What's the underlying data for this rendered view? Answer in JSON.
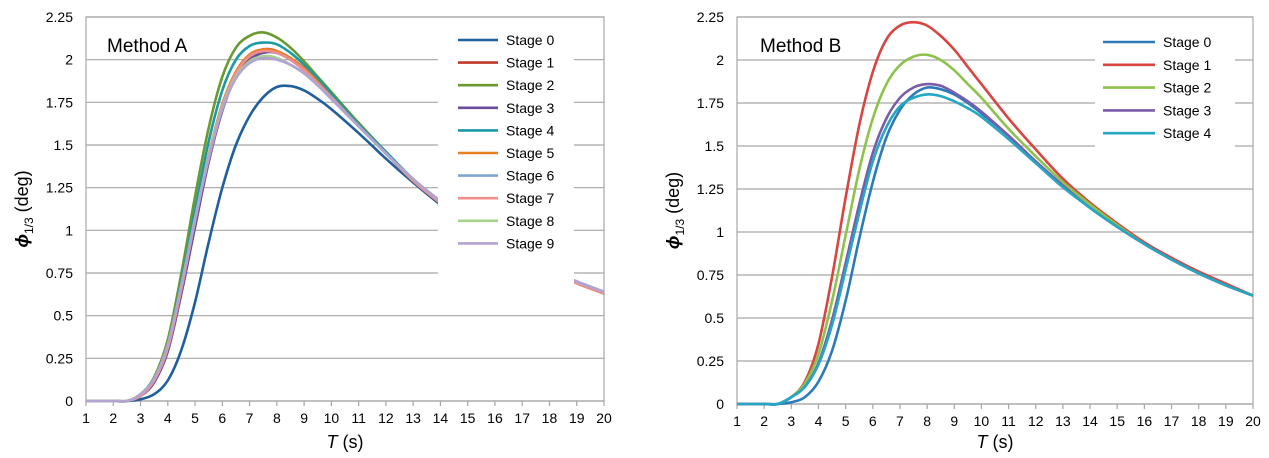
{
  "chart_data": [
    {
      "type": "line",
      "title": "Method A",
      "xlabel_symbol": "T",
      "xlabel_unit": " (s)",
      "ylabel_symbol": "ϕ",
      "ylabel_subscript": "1/3",
      "ylabel_unit": " (deg)",
      "xlim": [
        1,
        20
      ],
      "ylim": [
        0,
        2.25
      ],
      "x_ticks": [
        1,
        2,
        3,
        4,
        5,
        6,
        7,
        8,
        9,
        10,
        11,
        12,
        13,
        14,
        15,
        16,
        17,
        18,
        19,
        20
      ],
      "y_ticks": [
        {
          "value": 0,
          "label": "0"
        },
        {
          "value": 0.25,
          "label": "0.25"
        },
        {
          "value": 0.5,
          "label": "0.5"
        },
        {
          "value": 0.75,
          "label": "0.75"
        },
        {
          "value": 1,
          "label": "1"
        },
        {
          "value": 1.25,
          "label": "1.25"
        },
        {
          "value": 1.5,
          "label": "1.5"
        },
        {
          "value": 1.75,
          "label": "1.75"
        },
        {
          "value": 2,
          "label": "2"
        },
        {
          "value": 2.25,
          "label": "2.25"
        }
      ],
      "grid": "horizontal",
      "legend_position": "right",
      "series": [
        {
          "name": "Stage 0",
          "color": "#1f5f9e",
          "x": [
            1,
            2,
            2.5,
            3,
            3.5,
            4,
            4.5,
            5,
            5.5,
            6,
            6.5,
            7,
            7.5,
            8,
            8.5,
            9,
            9.5,
            10,
            11,
            12,
            13,
            14,
            15,
            16,
            17,
            18,
            19,
            20
          ],
          "y": [
            0,
            0,
            0,
            0.01,
            0.04,
            0.12,
            0.3,
            0.58,
            0.93,
            1.25,
            1.5,
            1.67,
            1.78,
            1.84,
            1.845,
            1.82,
            1.77,
            1.71,
            1.57,
            1.42,
            1.28,
            1.15,
            1.03,
            0.93,
            0.84,
            0.76,
            0.69,
            0.63
          ]
        },
        {
          "name": "Stage 1",
          "color": "#c0392b",
          "x": [
            1,
            2,
            2.5,
            3,
            3.5,
            4,
            4.5,
            5,
            5.5,
            6,
            6.5,
            7,
            7.5,
            8,
            8.5,
            9,
            9.5,
            10,
            11,
            12,
            13,
            14,
            15,
            16,
            17,
            18,
            19,
            20
          ],
          "y": [
            0,
            0,
            0,
            0.03,
            0.11,
            0.3,
            0.65,
            1.05,
            1.43,
            1.73,
            1.92,
            2.02,
            2.06,
            2.05,
            2.0,
            1.94,
            1.86,
            1.78,
            1.61,
            1.45,
            1.29,
            1.16,
            1.04,
            0.93,
            0.84,
            0.76,
            0.69,
            0.63
          ]
        },
        {
          "name": "Stage 2",
          "color": "#6a9a2f",
          "x": [
            1,
            2,
            2.5,
            3,
            3.5,
            4,
            4.5,
            5,
            5.5,
            6,
            6.5,
            7,
            7.5,
            8,
            8.5,
            9,
            9.5,
            10,
            11,
            12,
            13,
            14,
            15,
            16,
            17,
            18,
            19,
            20
          ],
          "y": [
            0,
            0,
            0,
            0.04,
            0.14,
            0.36,
            0.75,
            1.2,
            1.6,
            1.9,
            2.07,
            2.14,
            2.16,
            2.13,
            2.07,
            1.99,
            1.9,
            1.81,
            1.63,
            1.46,
            1.3,
            1.17,
            1.05,
            0.94,
            0.85,
            0.77,
            0.7,
            0.64
          ]
        },
        {
          "name": "Stage 3",
          "color": "#6c4b9a",
          "x": [
            1,
            2,
            2.5,
            3,
            3.5,
            4,
            4.5,
            5,
            5.5,
            6,
            6.5,
            7,
            7.5,
            8,
            8.5,
            9,
            9.5,
            10,
            11,
            12,
            13,
            14,
            15,
            16,
            17,
            18,
            19,
            20
          ],
          "y": [
            0,
            0,
            0,
            0.03,
            0.11,
            0.29,
            0.63,
            1.02,
            1.4,
            1.7,
            1.9,
            2.0,
            2.04,
            2.04,
            2.0,
            1.94,
            1.86,
            1.78,
            1.61,
            1.45,
            1.29,
            1.16,
            1.04,
            0.93,
            0.84,
            0.76,
            0.69,
            0.63
          ]
        },
        {
          "name": "Stage 4",
          "color": "#1a9aa5",
          "x": [
            1,
            2,
            2.5,
            3,
            3.5,
            4,
            4.5,
            5,
            5.5,
            6,
            6.5,
            7,
            7.5,
            8,
            8.5,
            9,
            9.5,
            10,
            11,
            12,
            13,
            14,
            15,
            16,
            17,
            18,
            19,
            20
          ],
          "y": [
            0,
            0,
            0,
            0.04,
            0.13,
            0.33,
            0.7,
            1.12,
            1.52,
            1.82,
            2.0,
            2.08,
            2.1,
            2.09,
            2.04,
            1.97,
            1.89,
            1.8,
            1.62,
            1.46,
            1.3,
            1.17,
            1.04,
            0.94,
            0.85,
            0.77,
            0.7,
            0.64
          ]
        },
        {
          "name": "Stage 5",
          "color": "#e67e22",
          "x": [
            1,
            2,
            2.5,
            3,
            3.5,
            4,
            4.5,
            5,
            5.5,
            6,
            6.5,
            7,
            7.5,
            8,
            8.5,
            9,
            9.5,
            10,
            11,
            12,
            13,
            14,
            15,
            16,
            17,
            18,
            19,
            20
          ],
          "y": [
            0,
            0,
            0,
            0.03,
            0.12,
            0.31,
            0.66,
            1.06,
            1.44,
            1.74,
            1.93,
            2.03,
            2.06,
            2.05,
            2.01,
            1.95,
            1.87,
            1.78,
            1.61,
            1.45,
            1.29,
            1.16,
            1.04,
            0.93,
            0.84,
            0.76,
            0.69,
            0.63
          ]
        },
        {
          "name": "Stage 6",
          "color": "#7da7d2",
          "x": [
            1,
            2,
            2.5,
            3,
            3.5,
            4,
            4.5,
            5,
            5.5,
            6,
            6.5,
            7,
            7.5,
            8,
            8.5,
            9,
            9.5,
            10,
            11,
            12,
            13,
            14,
            15,
            16,
            17,
            18,
            19,
            20
          ],
          "y": [
            0,
            0,
            0,
            0.04,
            0.13,
            0.33,
            0.68,
            1.07,
            1.43,
            1.72,
            1.9,
            1.99,
            2.02,
            2.01,
            1.97,
            1.92,
            1.85,
            1.77,
            1.61,
            1.45,
            1.3,
            1.17,
            1.05,
            0.94,
            0.85,
            0.77,
            0.7,
            0.64
          ]
        },
        {
          "name": "Stage 7",
          "color": "#f08e8e",
          "x": [
            1,
            2,
            2.5,
            3,
            3.5,
            4,
            4.5,
            5,
            5.5,
            6,
            6.5,
            7,
            7.5,
            8,
            8.5,
            9,
            9.5,
            10,
            11,
            12,
            13,
            14,
            15,
            16,
            17,
            18,
            19,
            20
          ],
          "y": [
            0,
            0,
            0,
            0.03,
            0.12,
            0.31,
            0.66,
            1.06,
            1.43,
            1.73,
            1.92,
            2.02,
            2.05,
            2.04,
            2.0,
            1.94,
            1.86,
            1.78,
            1.61,
            1.45,
            1.29,
            1.16,
            1.04,
            0.93,
            0.84,
            0.76,
            0.69,
            0.63
          ]
        },
        {
          "name": "Stage 8",
          "color": "#a3d48a",
          "x": [
            1,
            2,
            2.5,
            3,
            3.5,
            4,
            4.5,
            5,
            5.5,
            6,
            6.5,
            7,
            7.5,
            8,
            8.5,
            9,
            9.5,
            10,
            11,
            12,
            13,
            14,
            15,
            16,
            17,
            18,
            19,
            20
          ],
          "y": [
            0,
            0,
            0,
            0.04,
            0.13,
            0.33,
            0.68,
            1.07,
            1.43,
            1.72,
            1.9,
            1.99,
            2.02,
            2.01,
            1.97,
            1.92,
            1.85,
            1.77,
            1.61,
            1.45,
            1.3,
            1.17,
            1.05,
            0.94,
            0.85,
            0.77,
            0.7,
            0.64
          ]
        },
        {
          "name": "Stage 9",
          "color": "#b3a3d3",
          "x": [
            1,
            2,
            2.5,
            3,
            3.5,
            4,
            4.5,
            5,
            5.5,
            6,
            6.5,
            7,
            7.5,
            8,
            8.5,
            9,
            9.5,
            10,
            11,
            12,
            13,
            14,
            15,
            16,
            17,
            18,
            19,
            20
          ],
          "y": [
            0,
            0,
            0,
            0.04,
            0.13,
            0.33,
            0.68,
            1.06,
            1.42,
            1.71,
            1.89,
            1.98,
            2.01,
            2.0,
            1.97,
            1.92,
            1.85,
            1.77,
            1.61,
            1.45,
            1.3,
            1.17,
            1.05,
            0.94,
            0.85,
            0.77,
            0.7,
            0.64
          ]
        }
      ]
    },
    {
      "type": "line",
      "title": "Method B",
      "xlabel_symbol": "T",
      "xlabel_unit": " (s)",
      "ylabel_symbol": "ϕ",
      "ylabel_subscript": "1/3",
      "ylabel_unit": " (deg)",
      "xlim": [
        1,
        20
      ],
      "ylim": [
        0,
        2.25
      ],
      "x_ticks": [
        1,
        2,
        3,
        4,
        5,
        6,
        7,
        8,
        9,
        10,
        11,
        12,
        13,
        14,
        15,
        16,
        17,
        18,
        19,
        20
      ],
      "y_ticks": [
        {
          "value": 0,
          "label": "0"
        },
        {
          "value": 0.25,
          "label": "0.25"
        },
        {
          "value": 0.5,
          "label": "0.5"
        },
        {
          "value": 0.75,
          "label": "0.75"
        },
        {
          "value": 1,
          "label": "1"
        },
        {
          "value": 1.25,
          "label": "1.25"
        },
        {
          "value": 1.5,
          "label": "1.5"
        },
        {
          "value": 1.75,
          "label": "1.75"
        },
        {
          "value": 2,
          "label": "2"
        },
        {
          "value": 2.25,
          "label": "2.25"
        }
      ],
      "grid": "horizontal",
      "legend_position": "top-right",
      "series": [
        {
          "name": "Stage 0",
          "color": "#2b7bba",
          "x": [
            1,
            2,
            2.5,
            3,
            3.5,
            4,
            4.5,
            5,
            5.5,
            6,
            6.5,
            7,
            7.5,
            8,
            8.5,
            9,
            9.5,
            10,
            11,
            12,
            13,
            14,
            15,
            16,
            17,
            18,
            19,
            20
          ],
          "y": [
            0,
            0,
            0,
            0.01,
            0.04,
            0.13,
            0.31,
            0.6,
            0.96,
            1.29,
            1.55,
            1.71,
            1.8,
            1.84,
            1.83,
            1.8,
            1.75,
            1.69,
            1.56,
            1.41,
            1.27,
            1.14,
            1.03,
            0.93,
            0.84,
            0.76,
            0.69,
            0.63
          ]
        },
        {
          "name": "Stage 1",
          "color": "#d94540",
          "x": [
            1,
            2,
            2.5,
            3,
            3.5,
            4,
            4.5,
            5,
            5.5,
            6,
            6.5,
            7,
            7.5,
            8,
            8.5,
            9,
            9.5,
            10,
            11,
            12,
            13,
            14,
            15,
            16,
            17,
            18,
            19,
            20
          ],
          "y": [
            0,
            0,
            0,
            0.04,
            0.13,
            0.35,
            0.74,
            1.2,
            1.62,
            1.93,
            2.12,
            2.2,
            2.22,
            2.2,
            2.14,
            2.06,
            1.96,
            1.86,
            1.66,
            1.48,
            1.31,
            1.17,
            1.05,
            0.94,
            0.85,
            0.77,
            0.7,
            0.63
          ]
        },
        {
          "name": "Stage 2",
          "color": "#8dc34a",
          "x": [
            1,
            2,
            2.5,
            3,
            3.5,
            4,
            4.5,
            5,
            5.5,
            6,
            6.5,
            7,
            7.5,
            8,
            8.5,
            9,
            9.5,
            10,
            11,
            12,
            13,
            14,
            15,
            16,
            17,
            18,
            19,
            20
          ],
          "y": [
            0,
            0,
            0,
            0.04,
            0.12,
            0.29,
            0.6,
            0.98,
            1.36,
            1.66,
            1.86,
            1.97,
            2.02,
            2.03,
            2.0,
            1.94,
            1.86,
            1.78,
            1.6,
            1.44,
            1.29,
            1.16,
            1.04,
            0.93,
            0.84,
            0.76,
            0.69,
            0.63
          ]
        },
        {
          "name": "Stage 3",
          "color": "#7a5ca8",
          "x": [
            1,
            2,
            2.5,
            3,
            3.5,
            4,
            4.5,
            5,
            5.5,
            6,
            6.5,
            7,
            7.5,
            8,
            8.5,
            9,
            9.5,
            10,
            11,
            12,
            13,
            14,
            15,
            16,
            17,
            18,
            19,
            20
          ],
          "y": [
            0,
            0,
            0,
            0.04,
            0.1,
            0.24,
            0.49,
            0.82,
            1.16,
            1.46,
            1.66,
            1.78,
            1.84,
            1.86,
            1.85,
            1.81,
            1.76,
            1.7,
            1.56,
            1.41,
            1.27,
            1.14,
            1.03,
            0.93,
            0.84,
            0.76,
            0.69,
            0.63
          ]
        },
        {
          "name": "Stage 4",
          "color": "#22a7c4",
          "x": [
            1,
            2,
            2.5,
            3,
            3.5,
            4,
            4.5,
            5,
            5.5,
            6,
            6.5,
            7,
            7.5,
            8,
            8.5,
            9,
            9.5,
            10,
            11,
            12,
            13,
            14,
            15,
            16,
            17,
            18,
            19,
            20
          ],
          "y": [
            0,
            0,
            0,
            0.04,
            0.1,
            0.23,
            0.46,
            0.78,
            1.11,
            1.41,
            1.61,
            1.73,
            1.78,
            1.8,
            1.79,
            1.76,
            1.72,
            1.67,
            1.54,
            1.4,
            1.26,
            1.14,
            1.03,
            0.93,
            0.84,
            0.76,
            0.69,
            0.63
          ]
        }
      ]
    }
  ]
}
